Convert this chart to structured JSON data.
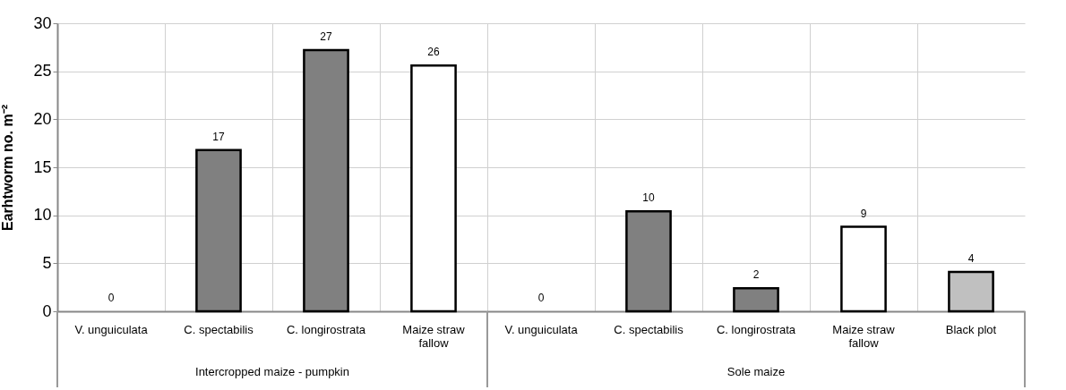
{
  "chart_data": {
    "type": "bar",
    "ylabel": "Earhtworm  no. m⁻²",
    "categories": [
      "V. unguiculata",
      "C. spectabilis",
      "C. longirostrata",
      "Maize straw fallow",
      "V. unguiculata",
      "C. spectabilis",
      "C. longirostrata",
      "Maize straw fallow",
      "Black plot"
    ],
    "values": [
      0,
      16.8,
      27.2,
      25.6,
      0,
      10.4,
      2.4,
      8.8,
      4.1
    ],
    "value_labels": [
      "0",
      "17",
      "27",
      "26",
      "0",
      "10",
      "2",
      "9",
      "4"
    ],
    "colors": [
      "#ffffff",
      "#808080",
      "#808080",
      "#ffffff",
      "#ffffff",
      "#808080",
      "#808080",
      "#ffffff",
      "#c0c0c0"
    ],
    "annotations": [
      "Intercropped maize - pumpkin",
      "Sole maize"
    ],
    "ylim": [
      0,
      30
    ],
    "yticks": [
      0,
      5,
      10,
      15,
      20,
      25,
      30
    ],
    "grid": true
  }
}
